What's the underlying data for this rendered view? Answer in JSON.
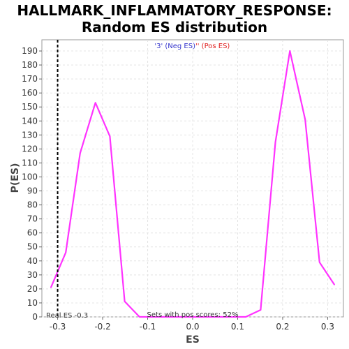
{
  "chart_data": {
    "type": "line",
    "title_line1": "HALLMARK_INFLAMMATORY_RESPONSE:",
    "title_line2": "Random ES distribution",
    "xlabel": "ES",
    "ylabel": "P(ES)",
    "xlim": [
      -0.335,
      0.335
    ],
    "ylim": [
      0,
      198
    ],
    "x_ticks": [
      -0.3,
      -0.2,
      -0.1,
      0.0,
      0.1,
      0.2,
      0.3
    ],
    "x_tick_labels": [
      "-0.3",
      "-0.2",
      "-0.1",
      "0.0",
      "0.1",
      "0.2",
      "0.3"
    ],
    "y_ticks": [
      0,
      10,
      20,
      30,
      40,
      50,
      60,
      70,
      80,
      90,
      100,
      110,
      120,
      130,
      140,
      150,
      160,
      170,
      180,
      190
    ],
    "y_tick_labels": [
      "0",
      "10",
      "20",
      "30",
      "40",
      "50",
      "60",
      "70",
      "80",
      "90",
      "100",
      "110",
      "120",
      "130",
      "140",
      "150",
      "160",
      "170",
      "180",
      "190"
    ],
    "grid": true,
    "legend": {
      "placement": "top-center",
      "neg_label": "'3' (Neg ES)",
      "pos_label": "'' (Pos ES)",
      "neg_color": "#3333cc",
      "pos_color": "#e02020"
    },
    "annotations": {
      "real_es_label": "Real ES -0.3",
      "pos_scores_label": "Sets with pos scores: 52%"
    },
    "real_es": -0.3,
    "series": [
      {
        "color": "#ff33ff",
        "x": [
          -0.315,
          -0.282,
          -0.25,
          -0.216,
          -0.184,
          -0.151,
          -0.118,
          0.118,
          0.151,
          0.184,
          0.216,
          0.25,
          0.282,
          0.315
        ],
        "y": [
          21,
          46,
          117,
          153,
          129,
          11,
          0,
          0,
          5,
          125,
          190,
          141,
          39,
          23
        ]
      }
    ]
  }
}
